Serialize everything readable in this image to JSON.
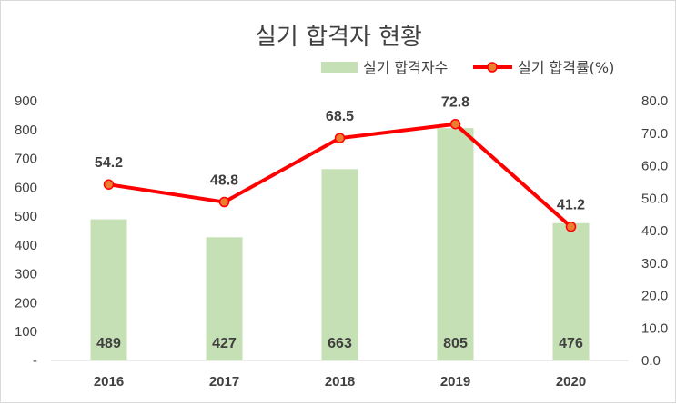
{
  "chart_data": {
    "type": "bar+line",
    "title": "실기 합격자 현황",
    "categories": [
      "2016",
      "2017",
      "2018",
      "2019",
      "2020"
    ],
    "series": [
      {
        "name": "실기 합격자수",
        "type": "bar",
        "axis": "left",
        "values": [
          489,
          427,
          663,
          805,
          476
        ],
        "color": "#c5e0b4"
      },
      {
        "name": "실기 합격률(%)",
        "type": "line",
        "axis": "right",
        "values": [
          54.2,
          48.8,
          68.5,
          72.8,
          41.2
        ],
        "color": "#ff0000",
        "marker_fill": "#ed7d31"
      }
    ],
    "y_left": {
      "ylim": [
        0,
        900
      ],
      "step": 100,
      "ticks": [
        "-",
        "100",
        "200",
        "300",
        "400",
        "500",
        "600",
        "700",
        "800",
        "900"
      ]
    },
    "y_right": {
      "ylim": [
        0,
        80
      ],
      "step": 10,
      "ticks": [
        "0.0",
        "10.0",
        "20.0",
        "30.0",
        "40.0",
        "50.0",
        "60.0",
        "70.0",
        "80.0"
      ]
    },
    "grid": false,
    "legend": "top-right"
  }
}
